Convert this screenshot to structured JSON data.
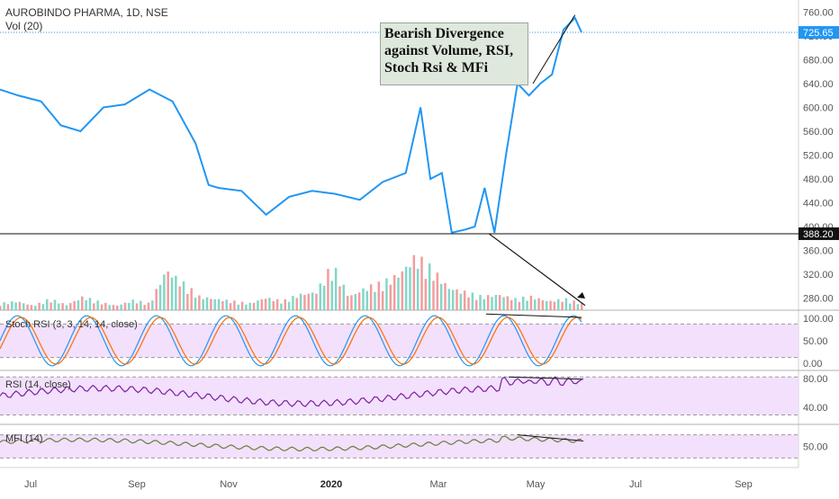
{
  "header": {
    "symbol": "AUROBINDO PHARMA, 1D, NSE",
    "volume_label": "Vol (20)"
  },
  "annotation": {
    "text": "Bearish Divergence\nagainst Volume, RSI,\nStoch Rsi & MFi"
  },
  "colors": {
    "price_line": "#2196f3",
    "volume_up": "#6dcfbf",
    "volume_down": "#f08c8c",
    "stoch_k": "#2196f3",
    "stoch_d": "#ff6d00",
    "rsi": "#7b1fa2",
    "mfi": "#6a7d3a",
    "band_fill": "#f0d8fb",
    "axis_text": "#555555"
  },
  "chart_data": [
    {
      "type": "line",
      "title": "AUROBINDO PHARMA, 1D, NSE",
      "x": [
        "2019-06-03",
        "2019-06-14",
        "2019-06-28",
        "2019-07-10",
        "2019-07-22",
        "2019-08-05",
        "2019-08-18",
        "2019-09-02",
        "2019-09-16",
        "2019-09-30",
        "2019-10-08",
        "2019-10-14",
        "2019-10-28",
        "2019-11-12",
        "2019-11-26",
        "2019-12-10",
        "2019-12-24",
        "2020-01-08",
        "2020-01-22",
        "2020-02-05",
        "2020-02-14",
        "2020-02-20",
        "2020-02-27",
        "2020-03-04",
        "2020-03-12",
        "2020-03-18",
        "2020-03-24",
        "2020-03-30",
        "2020-04-06",
        "2020-04-13",
        "2020-04-20",
        "2020-04-27",
        "2020-05-04",
        "2020-05-11",
        "2020-05-18",
        "2020-05-22"
      ],
      "series": [
        {
          "values": [
            630,
            620,
            610,
            570,
            560,
            600,
            605,
            630,
            610,
            540,
            470,
            465,
            460,
            420,
            450,
            460,
            455,
            445,
            475,
            490,
            600,
            480,
            490,
            390,
            395,
            400,
            465,
            390,
            520,
            640,
            620,
            640,
            655,
            730,
            750,
            725.65
          ]
        }
      ],
      "ylim": [
        260,
        780
      ],
      "y_ticks": [
        "280.00",
        "320.00",
        "360.00",
        "400.00",
        "440.00",
        "480.00",
        "520.00",
        "560.00",
        "600.00",
        "640.00",
        "680.00",
        "720.00",
        "760.00"
      ],
      "x_ticks": [
        "Jul",
        "Sep",
        "Nov",
        "2020",
        "Mar",
        "May",
        "Jul",
        "Sep"
      ],
      "last_price_label": "725.65",
      "level_label": "388.20",
      "level_value": 388.2
    },
    {
      "type": "bar",
      "title": "Vol (20)",
      "values_relative": [
        0.15,
        0.2,
        0.1,
        0.25,
        0.12,
        0.3,
        0.18,
        0.1,
        0.22,
        0.15,
        0.9,
        0.6,
        0.3,
        0.25,
        0.2,
        0.15,
        0.28,
        0.2,
        0.35,
        0.4,
        1.0,
        0.3,
        0.5,
        0.6,
        0.8,
        1.2,
        0.9,
        0.5,
        0.4,
        0.3,
        0.35,
        0.25,
        0.3,
        0.2,
        0.25,
        0.15
      ]
    },
    {
      "type": "line",
      "title": "Stoch RSI (3, 3, 14, 14, close)",
      "y_ticks": [
        "100.00",
        "50.00",
        "0.00"
      ],
      "ylim": [
        0,
        100
      ]
    },
    {
      "type": "line",
      "title": "RSI (14, close)",
      "y_ticks": [
        "80.00",
        "40.00"
      ],
      "ylim": [
        20,
        85
      ]
    },
    {
      "type": "line",
      "title": "MFI (14)",
      "y_ticks": [
        "50.00"
      ],
      "ylim": [
        0,
        100
      ]
    }
  ]
}
